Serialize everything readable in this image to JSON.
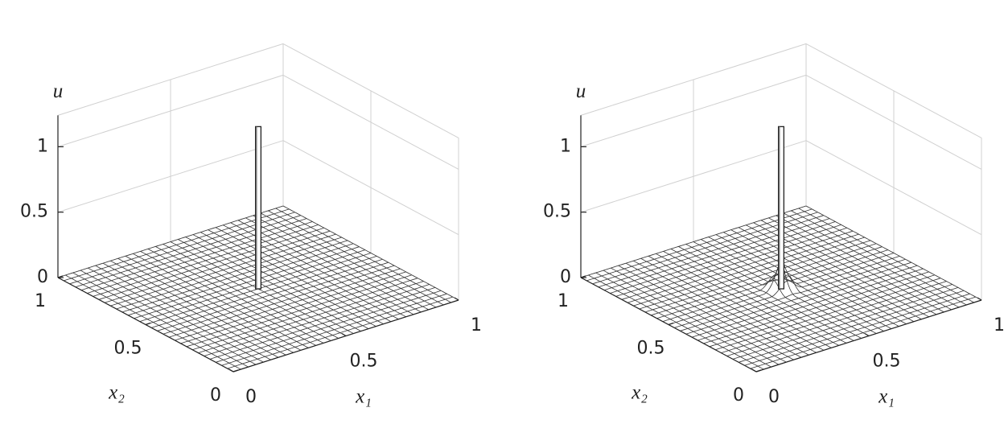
{
  "chart_data": [
    {
      "type": "surface",
      "zlabel": "u",
      "xlabel": "x₁",
      "ylabel": "x₂",
      "xlim": [
        0,
        1
      ],
      "xticks": [
        0,
        0.5,
        1
      ],
      "ylim": [
        0,
        1
      ],
      "yticks": [
        0,
        0.5,
        1
      ],
      "zlim": [
        0,
        1.24
      ],
      "zticks": [
        0,
        0.5,
        1
      ],
      "grid": true,
      "peak": {
        "x1": 0.5,
        "x2": 0.5,
        "u": 1.24,
        "width": 0.025
      }
    },
    {
      "type": "surface",
      "zlabel": "u",
      "xlabel": "x₁",
      "ylabel": "x₂",
      "xlim": [
        0,
        1
      ],
      "xticks": [
        0,
        0.5,
        1
      ],
      "ylim": [
        0,
        1
      ],
      "yticks": [
        0,
        0.5,
        1
      ],
      "zlim": [
        0,
        1.24
      ],
      "zticks": [
        0,
        0.5,
        1
      ],
      "grid": true,
      "peak": {
        "x1": 0.5,
        "x2": 0.5,
        "u": 1.24,
        "width": 0.08
      }
    }
  ]
}
